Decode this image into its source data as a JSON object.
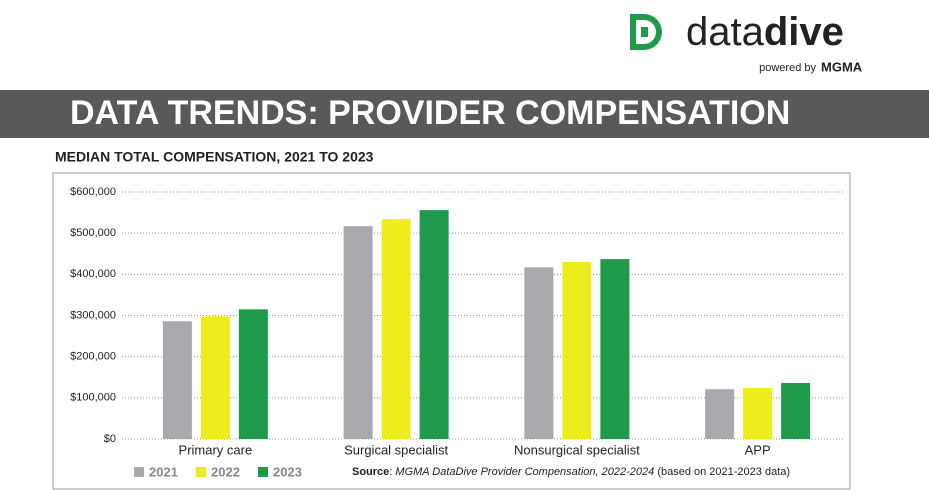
{
  "header": {
    "logo_a": "data",
    "logo_b": "dive",
    "powered": "powered by",
    "brand": "MGMA",
    "banner": "DATA TRENDS: PROVIDER COMPENSATION"
  },
  "chart_data": {
    "type": "bar",
    "title": "MEDIAN TOTAL COMPENSATION, 2021 TO 2023",
    "categories": [
      "Primary care",
      "Surgical specialist",
      "Nonsurgical specialist",
      "APP"
    ],
    "series": [
      {
        "name": "2021",
        "color": "#a7a9ac",
        "values": [
          286000,
          517000,
          417000,
          121000
        ]
      },
      {
        "name": "2022",
        "color": "#eded1e",
        "values": [
          298000,
          534000,
          430000,
          124000
        ]
      },
      {
        "name": "2023",
        "color": "#1e9a4a",
        "values": [
          315000,
          556000,
          437000,
          136000
        ]
      }
    ],
    "ylim": [
      0,
      600000
    ],
    "yticks": [
      {
        "value": 0,
        "label": "$0"
      },
      {
        "value": 100000,
        "label": "$100,000"
      },
      {
        "value": 200000,
        "label": "$200,000"
      },
      {
        "value": 300000,
        "label": "$300,000"
      },
      {
        "value": 400000,
        "label": "$400,000"
      },
      {
        "value": 500000,
        "label": "$500,000"
      },
      {
        "value": 600000,
        "label": "$600,000"
      }
    ],
    "grid": true,
    "source": {
      "label": "Source",
      "title": "MGMA DataDive Provider Compensation, 2022-2024",
      "note": "(based on 2021-2023 data)"
    }
  }
}
